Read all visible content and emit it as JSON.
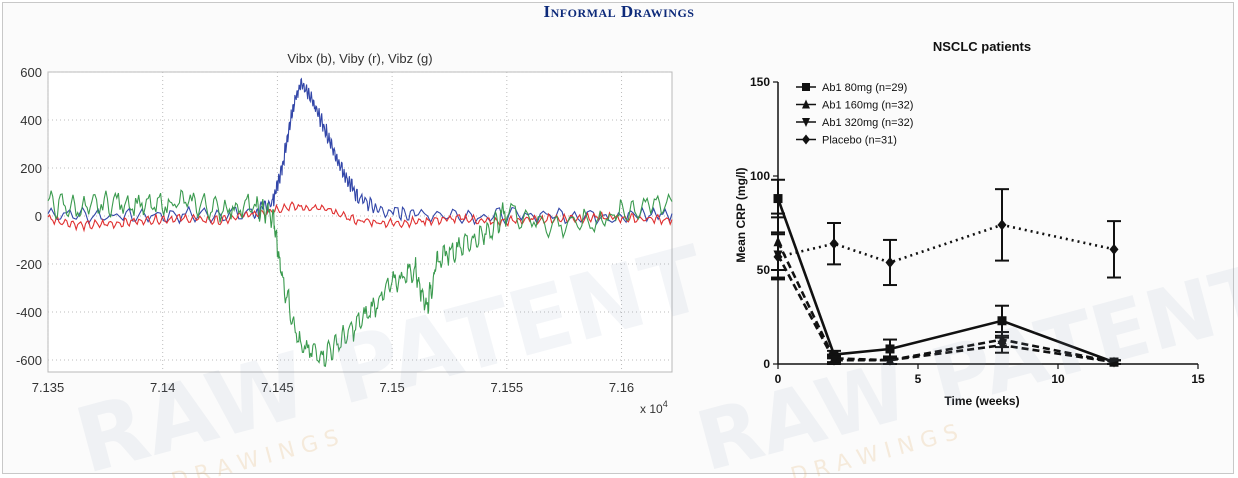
{
  "header": {
    "title": "Informal Drawings",
    "color": "#0d2a7a"
  },
  "watermark": {
    "main": "RAW PATENT",
    "sub": "D R A W I N G S"
  },
  "chart_data": [
    {
      "type": "line",
      "title": "Vibx (b), Viby (r), Vibz (g)",
      "x_multiplier_label": "x 10",
      "x_multiplier_exp": "4",
      "xlim": [
        7.135,
        7.1622
      ],
      "ylim": [
        -650,
        600
      ],
      "xticks": [
        7.135,
        7.14,
        7.145,
        7.15,
        7.155,
        7.16
      ],
      "xtick_labels": [
        "7.135",
        "7.14",
        "7.145",
        "7.15",
        "7.155",
        "7.16"
      ],
      "yticks": [
        600,
        400,
        200,
        0,
        -200,
        -400,
        -600
      ],
      "ytick_labels": [
        "600",
        "400",
        "200",
        "0",
        "-200",
        "-400",
        "-600"
      ],
      "grid": true,
      "series": [
        {
          "color": "#3246a8",
          "x": [
            7.135,
            7.138,
            7.141,
            7.144,
            7.1448,
            7.1452,
            7.1456,
            7.146,
            7.1465,
            7.147,
            7.1475,
            7.148,
            7.1485,
            7.1495,
            7.151,
            7.154,
            7.157,
            7.16,
            7.1622
          ],
          "y": [
            10,
            0,
            5,
            10,
            60,
            200,
            420,
            560,
            480,
            380,
            260,
            160,
            80,
            20,
            10,
            0,
            5,
            0,
            10
          ]
        },
        {
          "color": "#e03030",
          "x": [
            7.135,
            7.1365,
            7.138,
            7.1395,
            7.141,
            7.1425,
            7.144,
            7.1455,
            7.147,
            7.1485,
            7.15,
            7.1515,
            7.153,
            7.1545,
            7.156,
            7.1575,
            7.159,
            7.1605,
            7.1622
          ],
          "y": [
            -10,
            -40,
            -30,
            -15,
            -10,
            -20,
            10,
            40,
            30,
            -20,
            -30,
            -20,
            -10,
            -25,
            -15,
            -10,
            -5,
            -10,
            -15
          ]
        },
        {
          "color": "#3a9a4e",
          "x": [
            7.135,
            7.1365,
            7.138,
            7.1395,
            7.141,
            7.1425,
            7.144,
            7.1448,
            7.1452,
            7.146,
            7.147,
            7.148,
            7.149,
            7.15,
            7.151,
            7.1515,
            7.152,
            7.153,
            7.154,
            7.155,
            7.157,
            7.159,
            7.1605,
            7.1622
          ],
          "y": [
            50,
            30,
            60,
            40,
            60,
            30,
            40,
            0,
            -250,
            -550,
            -580,
            -500,
            -400,
            -280,
            -220,
            -380,
            -180,
            -120,
            -80,
            20,
            -40,
            -20,
            30,
            60
          ]
        }
      ]
    },
    {
      "type": "line",
      "title": "NSCLC patients",
      "xlabel": "Time (weeks)",
      "ylabel": "Mean CRP (mg/l)",
      "xlim": [
        0,
        15
      ],
      "ylim": [
        0,
        150
      ],
      "xticks": [
        0,
        5,
        10,
        15
      ],
      "xtick_labels": [
        "0",
        "5",
        "10",
        "15"
      ],
      "yticks": [
        0,
        50,
        100,
        150
      ],
      "ytick_labels": [
        "0",
        "50",
        "100",
        "150"
      ],
      "grid": false,
      "legend_position": "top-left",
      "x": [
        0,
        2,
        4,
        8,
        12
      ],
      "series": [
        {
          "name": "Ab1 80mg (n=29)",
          "marker": "square",
          "dash": "solid",
          "values": [
            88,
            5,
            8,
            23,
            1
          ],
          "err": [
            10,
            2,
            5,
            8,
            1
          ]
        },
        {
          "name": "Ab1 160mg (n=32)",
          "marker": "triangle-up",
          "dash": "dash",
          "values": [
            65,
            3,
            2,
            13,
            1
          ],
          "err": [
            15,
            2,
            2,
            4,
            1
          ]
        },
        {
          "name": "Ab1 320mg (n=32)",
          "marker": "triangle-down",
          "dash": "dash",
          "values": [
            58,
            2,
            2,
            10,
            1
          ],
          "err": [
            12,
            2,
            2,
            4,
            1
          ]
        },
        {
          "name": "Placebo (n=31)",
          "marker": "diamond",
          "dash": "dot",
          "values": [
            57,
            64,
            54,
            74,
            61
          ],
          "err": [
            12,
            11,
            12,
            19,
            15
          ]
        }
      ]
    }
  ]
}
